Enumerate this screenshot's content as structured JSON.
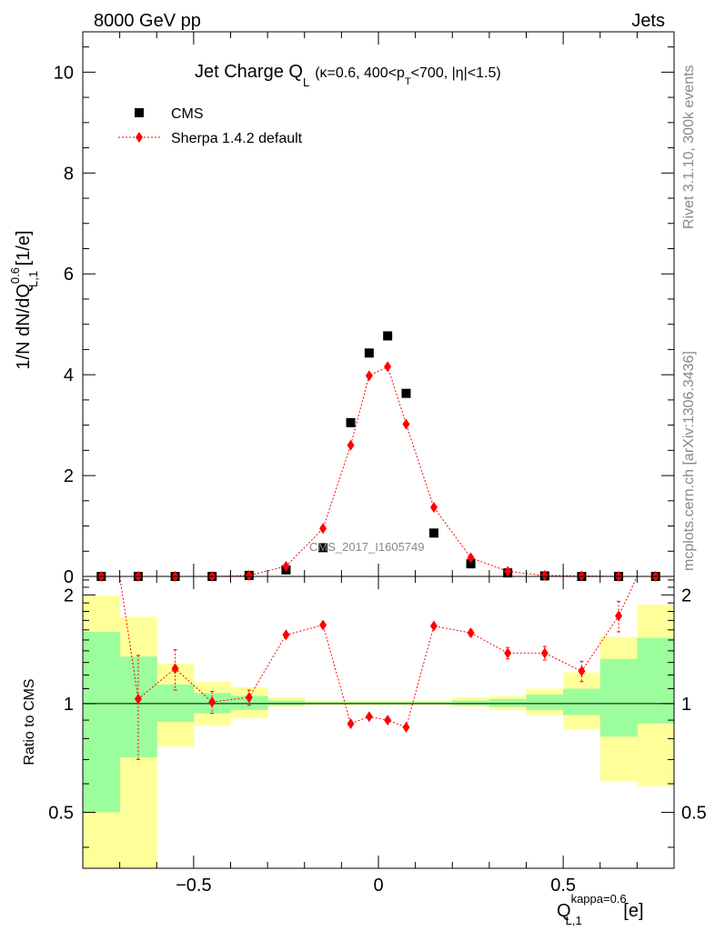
{
  "header": {
    "left": "8000 GeV pp",
    "right": "Jets"
  },
  "side_labels": {
    "rivet": "Rivet 3.1.10,  300k events",
    "mcplots": "mcplots.cern.ch [arXiv:1306.3436]"
  },
  "chart_data": [
    {
      "type": "scatter",
      "title": {
        "main": "Jet Charge Q",
        "main_sub": "L",
        "cond_pre": "(κ=0.6, 400<p",
        "cond_sub": "T",
        "cond_post": "<700, |η|<1.5)"
      },
      "ylabel": {
        "pre": "1/N dN/dQ",
        "sup": "0.6",
        "sub": "L,1",
        "post": " [1/e]"
      },
      "watermark": "CMS_2017_I1605749",
      "xlim": [
        -0.8,
        0.8
      ],
      "ylim": [
        0,
        10.8
      ],
      "y_ticks": [
        "0",
        "2",
        "4",
        "6",
        "8",
        "10"
      ],
      "legend_position": "top-left",
      "series": [
        {
          "name": "CMS",
          "color": "#000000",
          "marker": "square",
          "x": [
            -0.75,
            -0.65,
            -0.55,
            -0.45,
            -0.35,
            -0.25,
            -0.15,
            -0.075,
            -0.025,
            0.025,
            0.075,
            0.15,
            0.25,
            0.35,
            0.45,
            0.55,
            0.65,
            0.75
          ],
          "y": [
            0.0,
            0.0,
            0.0,
            0.0,
            0.02,
            0.13,
            0.57,
            3.05,
            4.43,
            4.77,
            3.63,
            0.86,
            0.25,
            0.07,
            0.01,
            0.0,
            0.0,
            0.0
          ]
        },
        {
          "name": "Sherpa 1.4.2 default",
          "color": "#ff0000",
          "marker": "diamond",
          "x": [
            -0.75,
            -0.65,
            -0.55,
            -0.45,
            -0.35,
            -0.25,
            -0.15,
            -0.075,
            -0.025,
            0.025,
            0.075,
            0.15,
            0.25,
            0.35,
            0.45,
            0.55,
            0.65,
            0.75
          ],
          "y": [
            0.0,
            0.0,
            0.0,
            0.0,
            0.02,
            0.2,
            0.95,
            2.6,
            3.98,
            4.16,
            3.02,
            1.37,
            0.37,
            0.1,
            0.02,
            0.01,
            0.0,
            0.0
          ]
        }
      ]
    },
    {
      "type": "line",
      "ylabel": "Ratio to CMS",
      "xlabel": {
        "pre": "Q",
        "sup": "kappa=0.6",
        "sub": "L,1",
        "post": " [e]"
      },
      "xlim": [
        -0.8,
        0.8
      ],
      "ylim": [
        0.35,
        2.25
      ],
      "x_ticks": [
        "−0.5",
        "0",
        "0.5"
      ],
      "y_ticks": [
        "0.5",
        "1",
        "2"
      ],
      "bins": [
        -0.8,
        -0.7,
        -0.6,
        -0.5,
        -0.4,
        -0.3,
        -0.2,
        -0.1,
        -0.05,
        0.0,
        0.05,
        0.1,
        0.2,
        0.3,
        0.4,
        0.5,
        0.6,
        0.7,
        0.8
      ],
      "band_1sigma": {
        "color": "#9cfd9c",
        "lo": [
          0.5,
          0.71,
          0.89,
          0.94,
          0.96,
          0.99,
          0.995,
          0.995,
          0.995,
          0.995,
          0.995,
          0.995,
          0.99,
          0.98,
          0.96,
          0.93,
          0.81,
          0.88
        ],
        "hi": [
          1.58,
          1.35,
          1.13,
          1.07,
          1.05,
          1.02,
          1.01,
          1.01,
          1.01,
          1.01,
          1.01,
          1.01,
          1.02,
          1.03,
          1.06,
          1.1,
          1.33,
          1.52
        ]
      },
      "band_2sigma": {
        "color": "#ffff99",
        "lo": [
          0.33,
          0.33,
          0.76,
          0.87,
          0.91,
          0.98,
          0.99,
          0.99,
          0.99,
          0.99,
          0.99,
          0.99,
          0.98,
          0.96,
          0.93,
          0.85,
          0.61,
          0.59
        ],
        "hi": [
          1.99,
          1.74,
          1.29,
          1.15,
          1.11,
          1.04,
          1.02,
          1.02,
          1.02,
          1.02,
          1.02,
          1.02,
          1.04,
          1.05,
          1.1,
          1.22,
          1.53,
          1.88
        ]
      },
      "ratio": {
        "name": "Sherpa 1.4.2 default",
        "color": "#ff0000",
        "x": [
          -0.7,
          -0.65,
          -0.55,
          -0.45,
          -0.35,
          -0.25,
          -0.15,
          -0.075,
          -0.025,
          0.025,
          0.075,
          0.15,
          0.25,
          0.35,
          0.45,
          0.55,
          0.65,
          0.7
        ],
        "y": [
          2.25,
          1.03,
          1.25,
          1.01,
          1.04,
          1.55,
          1.65,
          0.88,
          0.92,
          0.9,
          0.86,
          1.64,
          1.57,
          1.38,
          1.38,
          1.23,
          1.75,
          2.25
        ],
        "err": [
          0,
          0.33,
          0.16,
          0.07,
          0.05,
          0.02,
          0.02,
          0.01,
          0.01,
          0.01,
          0.01,
          0.02,
          0.03,
          0.05,
          0.06,
          0.08,
          0.17,
          0
        ]
      }
    }
  ]
}
